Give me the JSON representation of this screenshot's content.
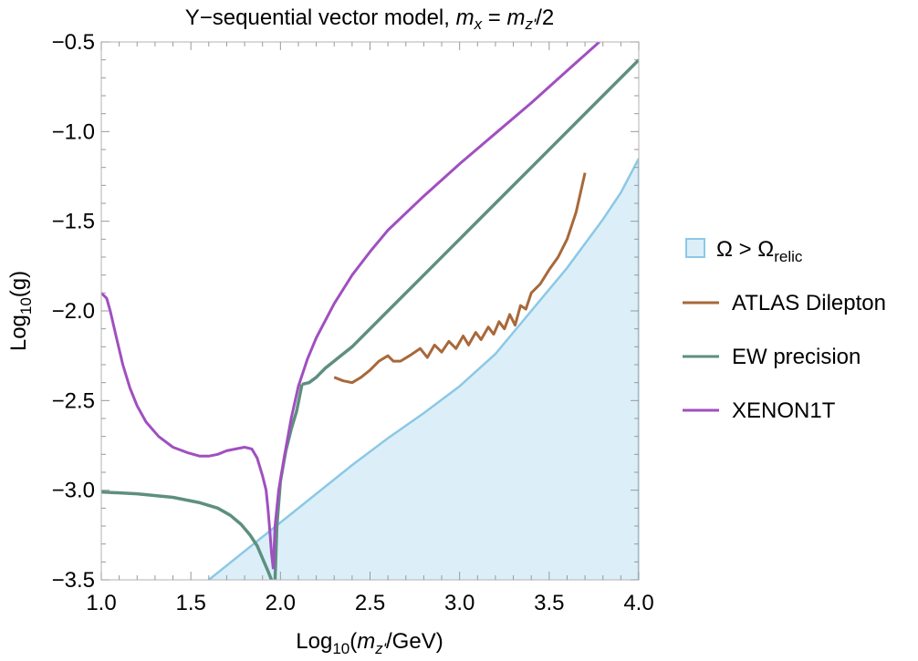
{
  "chart_data": {
    "type": "line",
    "title": {
      "prefix": "Y−sequential vector model, ",
      "var1_main": "m",
      "var1_sub": "x",
      "equals": " = ",
      "var2_main": "m",
      "var2_sub": "z'",
      "suffix": "/2"
    },
    "xlabel": {
      "prefix": "Log",
      "sub": "10",
      "paren_open": "(",
      "var_main": "m",
      "var_sub": "z'",
      "suffix": "/GeV)"
    },
    "ylabel": {
      "prefix": "Log",
      "sub": "10",
      "suffix": "(g)"
    },
    "xlim": [
      1.0,
      4.0
    ],
    "ylim": [
      -3.5,
      -0.5
    ],
    "x_ticks": [
      1.0,
      1.5,
      2.0,
      2.5,
      3.0,
      3.5,
      4.0
    ],
    "x_tick_labels": [
      "1.0",
      "1.5",
      "2.0",
      "2.5",
      "3.0",
      "3.5",
      "4.0"
    ],
    "y_ticks": [
      -3.5,
      -3.0,
      -2.5,
      -2.0,
      -1.5,
      -1.0,
      -0.5
    ],
    "y_tick_labels": [
      "−3.5",
      "−3.0",
      "−2.5",
      "−2.0",
      "−1.5",
      "−1.0",
      "−0.5"
    ],
    "grid": false,
    "legend_position": "right",
    "legend": {
      "relic": {
        "main": "Ω > Ω",
        "sub": "relic"
      },
      "atlas": "ATLAS Dilepton",
      "ew": "EW precision",
      "xenon": "XENON1T"
    },
    "colors": {
      "relic_fill": "#dceff8",
      "relic_line": "#8cc8e6",
      "atlas": "#a8683a",
      "ew": "#5e8f80",
      "xenon": "#a04fc0"
    },
    "series": [
      {
        "name": "Ω > Ω_relic",
        "kind": "region",
        "x": [
          1.6,
          1.7,
          1.8,
          1.9,
          2.0,
          2.2,
          2.4,
          2.6,
          2.8,
          3.0,
          3.2,
          3.4,
          3.6,
          3.8,
          3.9,
          4.0
        ],
        "y": [
          -3.5,
          -3.42,
          -3.34,
          -3.26,
          -3.18,
          -3.02,
          -2.86,
          -2.71,
          -2.57,
          -2.42,
          -2.24,
          -2.0,
          -1.76,
          -1.49,
          -1.34,
          -1.15
        ]
      },
      {
        "name": "ATLAS Dilepton",
        "kind": "line",
        "x": [
          2.3,
          2.35,
          2.4,
          2.45,
          2.5,
          2.55,
          2.6,
          2.63,
          2.67,
          2.72,
          2.78,
          2.82,
          2.86,
          2.9,
          2.94,
          2.98,
          3.02,
          3.05,
          3.09,
          3.12,
          3.16,
          3.19,
          3.22,
          3.25,
          3.28,
          3.31,
          3.34,
          3.37,
          3.4,
          3.45,
          3.5,
          3.55,
          3.6,
          3.65,
          3.7
        ],
        "y": [
          -2.37,
          -2.39,
          -2.4,
          -2.37,
          -2.33,
          -2.28,
          -2.25,
          -2.28,
          -2.28,
          -2.25,
          -2.21,
          -2.26,
          -2.19,
          -2.23,
          -2.17,
          -2.21,
          -2.14,
          -2.19,
          -2.12,
          -2.16,
          -2.09,
          -2.13,
          -2.06,
          -2.1,
          -2.02,
          -2.08,
          -1.97,
          -1.99,
          -1.9,
          -1.85,
          -1.77,
          -1.7,
          -1.6,
          -1.45,
          -1.23
        ]
      },
      {
        "name": "EW precision",
        "kind": "line",
        "segments": [
          {
            "x": [
              1.0,
              1.2,
              1.4,
              1.55,
              1.65,
              1.72,
              1.78,
              1.83,
              1.87,
              1.9,
              1.93,
              1.95
            ],
            "y": [
              -3.01,
              -3.02,
              -3.04,
              -3.07,
              -3.1,
              -3.14,
              -3.19,
              -3.25,
              -3.31,
              -3.38,
              -3.45,
              -3.5
            ]
          },
          {
            "x": [
              1.97,
              1.98,
              2.0,
              2.03,
              2.06,
              2.09,
              2.12
            ],
            "y": [
              -3.5,
              -3.2,
              -2.95,
              -2.78,
              -2.66,
              -2.56,
              -2.41
            ]
          },
          {
            "x": [
              2.12,
              2.16,
              2.2,
              2.25,
              2.4,
              2.6,
              2.8,
              3.0,
              3.2,
              3.4,
              3.6,
              3.8,
              4.0
            ],
            "y": [
              -2.41,
              -2.4,
              -2.37,
              -2.32,
              -2.2,
              -2.0,
              -1.8,
              -1.6,
              -1.4,
              -1.2,
              -1.0,
              -0.8,
              -0.6
            ]
          }
        ]
      },
      {
        "name": "XENON1T",
        "kind": "line",
        "segments": [
          {
            "x": [
              1.0,
              1.03,
              1.05,
              1.08,
              1.12,
              1.16,
              1.2,
              1.25,
              1.32,
              1.4,
              1.48,
              1.55,
              1.6,
              1.65,
              1.7,
              1.75,
              1.8,
              1.84,
              1.87,
              1.9,
              1.92,
              1.93,
              1.94,
              1.95,
              1.96
            ],
            "y": [
              -1.9,
              -1.93,
              -2.0,
              -2.13,
              -2.3,
              -2.43,
              -2.53,
              -2.62,
              -2.7,
              -2.76,
              -2.79,
              -2.81,
              -2.81,
              -2.8,
              -2.78,
              -2.77,
              -2.76,
              -2.77,
              -2.82,
              -2.92,
              -3.0,
              -3.1,
              -3.22,
              -3.35,
              -3.44
            ]
          },
          {
            "x": [
              1.96,
              1.97,
              1.99,
              2.02,
              2.06,
              2.1,
              2.15,
              2.2,
              2.3,
              2.4,
              2.5,
              2.6,
              2.8,
              3.0,
              3.2,
              3.4,
              3.6,
              3.78
            ],
            "y": [
              -3.44,
              -3.2,
              -3.0,
              -2.82,
              -2.6,
              -2.42,
              -2.27,
              -2.15,
              -1.96,
              -1.8,
              -1.67,
              -1.55,
              -1.36,
              -1.18,
              -1.01,
              -0.84,
              -0.66,
              -0.5
            ]
          }
        ]
      }
    ]
  }
}
